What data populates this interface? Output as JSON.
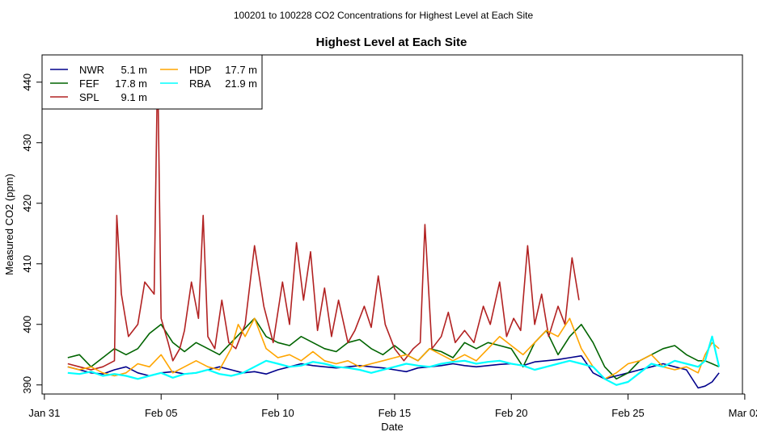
{
  "chart_data": {
    "type": "line",
    "suptitle": "100201  to  100228 CO2 Concentrations for Highest Level at Each Site",
    "title": "Highest Level at Each Site",
    "xlabel": "Date",
    "ylabel": "Measured CO2 (ppm)",
    "xlim": [
      -0.1,
      29.9
    ],
    "ylim": [
      388.5,
      444.5
    ],
    "x_ticks": [
      {
        "value": 0,
        "label": "Jan 31"
      },
      {
        "value": 5,
        "label": "Feb 05"
      },
      {
        "value": 10,
        "label": "Feb 10"
      },
      {
        "value": 15,
        "label": "Feb 15"
      },
      {
        "value": 20,
        "label": "Feb 20"
      },
      {
        "value": 25,
        "label": "Feb 25"
      },
      {
        "value": 30,
        "label": "Mar 02"
      }
    ],
    "y_ticks": [
      390,
      400,
      410,
      420,
      430,
      440
    ],
    "legend_position": "top-left",
    "series": [
      {
        "name": "NWR",
        "height": "5.1 m",
        "color": "#00008b",
        "x": [
          1,
          1.5,
          2,
          2.5,
          3,
          3.5,
          4,
          4.5,
          5,
          5.5,
          6,
          6.5,
          7,
          7.5,
          8,
          8.5,
          9,
          9.5,
          10,
          10.5,
          11,
          11.5,
          12,
          12.5,
          13,
          13.5,
          14,
          14.5,
          15,
          15.5,
          16,
          16.5,
          17,
          17.5,
          18,
          18.5,
          19,
          19.5,
          20,
          20.5,
          21,
          21.5,
          22,
          22.5,
          23,
          23.5,
          24,
          24.5,
          25,
          25.5,
          26,
          26.5,
          27,
          27.5,
          28,
          28.3,
          28.6,
          28.9
        ],
        "values": [
          393,
          392.5,
          392,
          391.8,
          392.5,
          393,
          392,
          391.5,
          392,
          392.2,
          391.8,
          392,
          392.5,
          393,
          392.5,
          392,
          392.2,
          391.8,
          392.5,
          393,
          393.5,
          393.2,
          393,
          392.8,
          393,
          393.2,
          393,
          392.8,
          392.5,
          392.2,
          392.8,
          393,
          393.2,
          393.5,
          393.2,
          393,
          393.2,
          393.4,
          393.5,
          393.2,
          393.8,
          394,
          394.2,
          394.5,
          394.8,
          392,
          391,
          391.5,
          392,
          392.5,
          393,
          393.5,
          393,
          392.5,
          389.5,
          389.8,
          390.5,
          392
        ]
      },
      {
        "name": "FEF",
        "height": "17.8 m",
        "color": "#006400",
        "x": [
          1,
          1.5,
          2,
          2.5,
          3,
          3.5,
          4,
          4.5,
          5,
          5.5,
          6,
          6.5,
          7,
          7.5,
          8,
          8.5,
          9,
          9.5,
          10,
          10.5,
          11,
          11.5,
          12,
          12.5,
          13,
          13.5,
          14,
          14.5,
          15,
          15.5,
          16,
          16.5,
          17,
          17.5,
          18,
          18.5,
          19,
          19.5,
          20,
          20.5,
          21,
          21.5,
          22,
          22.5,
          23,
          23.5,
          24,
          24.5,
          25,
          25.5,
          26,
          26.5,
          27,
          27.5,
          28,
          28.3,
          28.6,
          28.9
        ],
        "values": [
          394.5,
          395,
          393,
          394.5,
          396,
          395,
          396,
          398.5,
          400,
          397,
          395.5,
          397,
          396,
          395,
          397,
          399,
          401,
          398,
          397,
          396.5,
          398,
          397,
          396,
          395.5,
          397,
          397.5,
          396,
          395,
          396.5,
          395,
          394,
          396,
          395.5,
          394.5,
          397,
          396,
          397,
          396.5,
          396,
          393,
          397,
          399,
          395,
          398,
          400,
          397,
          393,
          391,
          392,
          394,
          395,
          396,
          396.5,
          395,
          394,
          394,
          393.5,
          393
        ]
      },
      {
        "name": "SPL",
        "height": "9.1 m",
        "color": "#b22222",
        "x": [
          1,
          1.5,
          2,
          2.5,
          3,
          3.1,
          3.3,
          3.6,
          4,
          4.3,
          4.7,
          4.85,
          5,
          5.3,
          5.5,
          5.8,
          6,
          6.3,
          6.6,
          6.8,
          7,
          7.3,
          7.6,
          7.9,
          8.2,
          8.6,
          9,
          9.4,
          9.8,
          10.2,
          10.5,
          10.8,
          11.1,
          11.4,
          11.7,
          12,
          12.3,
          12.6,
          13,
          13.3,
          13.7,
          14,
          14.3,
          14.6,
          15,
          15.4,
          15.8,
          16.1,
          16.3,
          16.6,
          17,
          17.3,
          17.6,
          18,
          18.4,
          18.8,
          19.1,
          19.5,
          19.8,
          20.1,
          20.4,
          20.7,
          21,
          21.3,
          21.6,
          22,
          22.3,
          22.6,
          22.9
        ],
        "values": [
          393.5,
          393,
          392.5,
          393,
          394,
          418,
          405,
          398,
          400,
          407,
          405,
          443.5,
          401,
          397,
          394,
          396,
          399,
          407,
          401,
          418,
          398,
          396,
          404,
          397,
          396,
          400,
          413,
          403,
          397,
          407,
          400,
          413.5,
          404,
          412,
          399,
          406,
          398,
          404,
          397,
          399,
          403,
          399.5,
          408,
          400,
          396,
          394,
          396,
          397,
          416.5,
          396,
          398,
          402,
          397,
          399,
          397,
          403,
          400,
          407,
          398,
          401,
          399,
          413,
          400,
          405,
          398,
          403,
          400,
          411,
          404
        ]
      },
      {
        "name": "HDP",
        "height": "17.7 m",
        "color": "#ffa500",
        "x": [
          1,
          1.5,
          2,
          2.5,
          3,
          3.5,
          4,
          4.5,
          5,
          5.5,
          6,
          6.5,
          7,
          7.5,
          8,
          8.3,
          8.6,
          9,
          9.5,
          10,
          10.5,
          11,
          11.5,
          12,
          12.5,
          13,
          13.5,
          14,
          14.5,
          15,
          15.5,
          16,
          16.5,
          17,
          17.5,
          18,
          18.5,
          19,
          19.5,
          20,
          20.5,
          21,
          21.5,
          22,
          22.5,
          23,
          23.5,
          24,
          24.5,
          25,
          25.5,
          26,
          26.5,
          27,
          27.5,
          28,
          28.3,
          28.6,
          28.9
        ],
        "values": [
          393,
          392.5,
          393,
          392,
          391.5,
          392,
          393.5,
          393,
          395,
          392,
          393,
          394,
          393,
          392.5,
          396,
          400,
          398,
          401,
          396,
          394.5,
          395,
          394,
          395.5,
          394,
          393.5,
          394,
          393,
          393.5,
          394,
          394.5,
          395,
          394,
          396,
          395,
          394,
          395,
          394,
          396,
          398,
          396.5,
          395,
          397,
          399,
          398,
          401,
          396,
          393,
          391,
          392,
          393.5,
          394,
          395,
          393,
          392.5,
          393,
          392,
          395,
          397,
          396
        ]
      },
      {
        "name": "RBA",
        "height": "21.9 m",
        "color": "#00ffff",
        "x": [
          1,
          1.5,
          2,
          2.5,
          3,
          3.5,
          4,
          4.5,
          5,
          5.5,
          6,
          6.5,
          7,
          7.5,
          8,
          8.5,
          9,
          9.5,
          10,
          10.5,
          11,
          11.5,
          12,
          12.5,
          13,
          13.5,
          14,
          14.5,
          15,
          15.5,
          16,
          16.5,
          17,
          17.5,
          18,
          18.5,
          19,
          19.5,
          20,
          20.5,
          21,
          21.5,
          22,
          22.5,
          23,
          23.5,
          24,
          24.5,
          25,
          25.5,
          26,
          26.5,
          27,
          27.5,
          28,
          28.3,
          28.6,
          28.9
        ],
        "values": [
          392,
          391.8,
          392.2,
          391.5,
          391.8,
          391.5,
          391,
          391.5,
          392,
          391.2,
          391.8,
          392,
          392.5,
          391.8,
          391.5,
          392,
          393,
          394,
          393.5,
          393,
          393.2,
          393.8,
          393.5,
          393,
          392.8,
          392.5,
          392,
          392.5,
          393,
          393.5,
          393.2,
          393,
          393.5,
          393.8,
          394,
          393.5,
          393.8,
          394,
          393.5,
          393.2,
          392.5,
          393,
          393.5,
          394,
          393.5,
          393,
          391,
          390,
          390.5,
          392,
          393.5,
          393,
          394,
          393.5,
          393,
          394,
          398,
          393
        ]
      }
    ]
  }
}
